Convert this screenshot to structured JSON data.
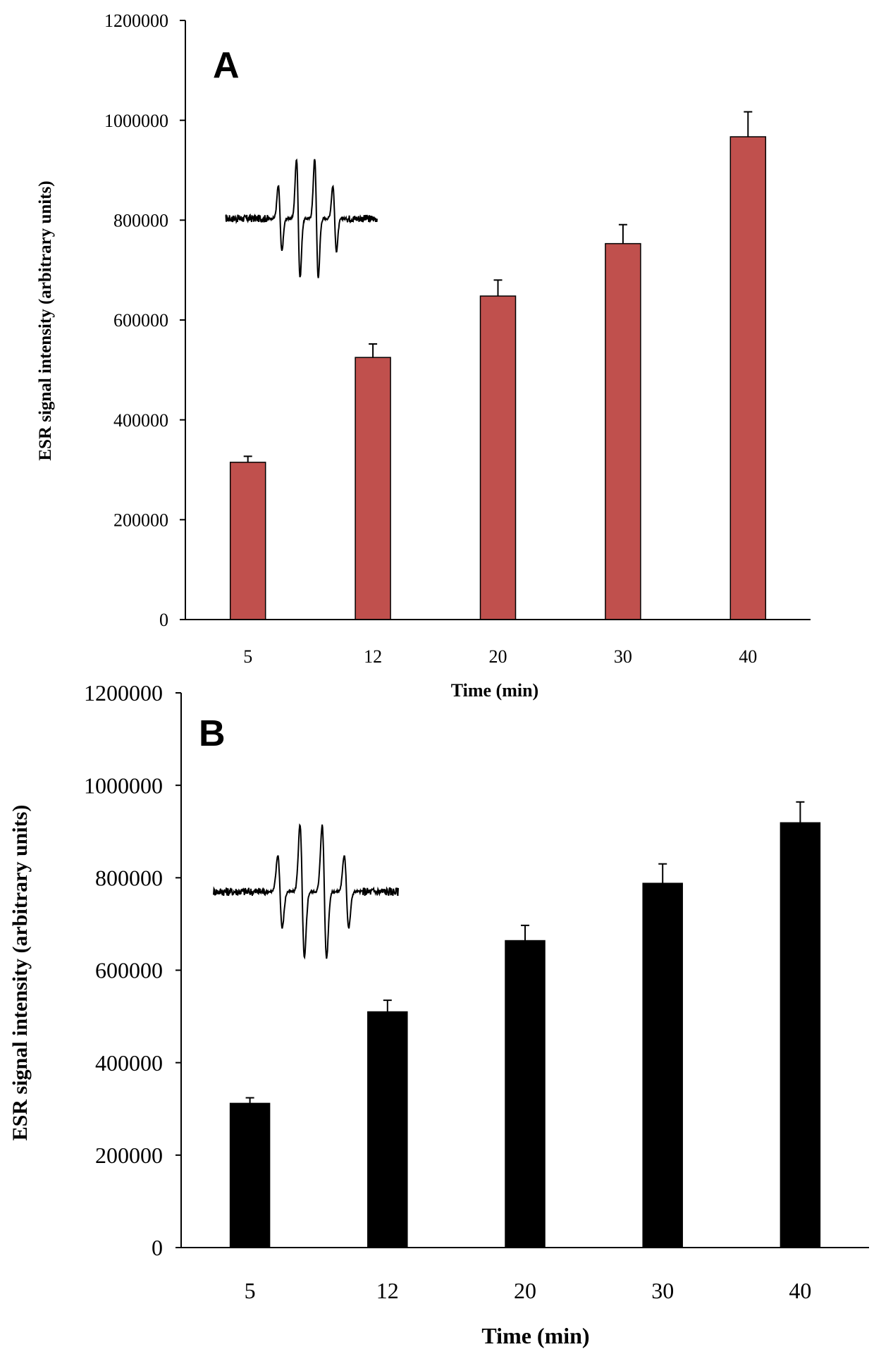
{
  "figure": {
    "panels": [
      "A",
      "B"
    ]
  },
  "chart_data": [
    {
      "panel": "A",
      "type": "bar",
      "categories": [
        "5",
        "12",
        "20",
        "30",
        "40"
      ],
      "values": [
        315000,
        525000,
        648000,
        753000,
        967000
      ],
      "errors": [
        12000,
        27000,
        32000,
        38000,
        50000
      ],
      "xlabel": "Time (min)",
      "ylabel": "ESR signal intensity  (arbitrary  units)",
      "ylim": [
        0,
        1200000
      ],
      "yticks": [
        0,
        200000,
        400000,
        600000,
        800000,
        1000000,
        1200000
      ],
      "ytick_labels": [
        "0",
        "200000",
        "400000",
        "600000",
        "800000",
        "1000000",
        "1200000"
      ],
      "bar_color": "#C0504D",
      "inset": "ESR spectrum"
    },
    {
      "panel": "B",
      "type": "bar",
      "categories": [
        "5",
        "12",
        "20",
        "30",
        "40"
      ],
      "values": [
        312000,
        510000,
        664000,
        788000,
        919000
      ],
      "errors": [
        12000,
        25000,
        33000,
        42000,
        45000
      ],
      "xlabel": "Time (min)",
      "ylabel": "ESR signal intensity  (arbitrary  units)",
      "ylim": [
        0,
        1200000
      ],
      "yticks": [
        0,
        200000,
        400000,
        600000,
        800000,
        1000000,
        1200000
      ],
      "ytick_labels": [
        "0",
        "200000",
        "400000",
        "600000",
        "800000",
        "1000000",
        "1200000"
      ],
      "bar_color": "#000000",
      "inset": "ESR spectrum"
    }
  ]
}
